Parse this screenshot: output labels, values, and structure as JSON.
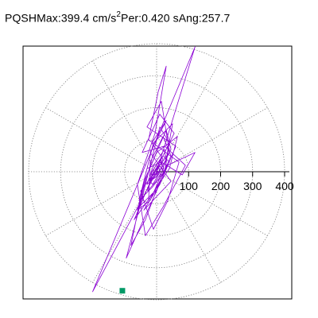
{
  "header": {
    "station": "PQSH",
    "max_label": "Max:",
    "max_value": "399.4",
    "max_unit": "cm/s",
    "max_unit_exp": "2",
    "period_label": "Per:",
    "period_value": "0.420 s",
    "angle_label": "Ang:",
    "angle_value": "257.7"
  },
  "chart_data": {
    "type": "scatter",
    "title": "PQSH  Max: 399.4 cm/s2  Per: 0.420 s  Ang: 257.7",
    "xlabel": "",
    "ylabel": "",
    "radial_ticks": [
      "100",
      "200",
      "300",
      "400"
    ],
    "radial_values": [
      100,
      200,
      300,
      400
    ],
    "rmax": 400,
    "angular_spokes_deg": [
      0,
      30,
      60,
      90,
      120,
      150,
      180,
      210,
      240,
      270,
      300,
      330
    ],
    "grid": true,
    "series": [
      {
        "color": "#8b00d4",
        "points": [
          [
            0,
            0
          ],
          [
            20,
            40
          ],
          [
            -15,
            90
          ],
          [
            30,
            160
          ],
          [
            -20,
            60
          ],
          [
            45,
            -30
          ],
          [
            -40,
            -120
          ],
          [
            10,
            -40
          ],
          [
            60,
            80
          ],
          [
            -30,
            140
          ],
          [
            15,
            220
          ],
          [
            40,
            60
          ],
          [
            -50,
            -60
          ],
          [
            -10,
            -180
          ],
          [
            35,
            -90
          ],
          [
            70,
            30
          ],
          [
            -25,
            100
          ],
          [
            5,
            250
          ],
          [
            30,
            330
          ],
          [
            -5,
            120
          ],
          [
            -60,
            -40
          ],
          [
            -35,
            -200
          ],
          [
            20,
            -110
          ],
          [
            90,
            20
          ],
          [
            25,
            80
          ],
          [
            -45,
            60
          ],
          [
            10,
            180
          ],
          [
            55,
            120
          ],
          [
            -15,
            -20
          ],
          [
            -70,
            -150
          ],
          [
            -20,
            -80
          ],
          [
            40,
            10
          ],
          [
            65,
            110
          ],
          [
            0,
            60
          ],
          [
            -30,
            -10
          ],
          [
            -55,
            -110
          ],
          [
            -5,
            -60
          ],
          [
            30,
            40
          ],
          [
            50,
            150
          ],
          [
            -10,
            90
          ],
          [
            -40,
            -30
          ],
          [
            -80,
            -230
          ],
          [
            -35,
            -150
          ],
          [
            10,
            -30
          ],
          [
            45,
            50
          ],
          [
            20,
            110
          ],
          [
            -20,
            30
          ],
          [
            -25,
            -90
          ],
          [
            5,
            -40
          ],
          [
            35,
            20
          ],
          [
            120,
            60
          ],
          [
            80,
            -10
          ],
          [
            15,
            30
          ],
          [
            -30,
            10
          ],
          [
            -55,
            -90
          ],
          [
            -15,
            -50
          ],
          [
            25,
            0
          ],
          [
            40,
            90
          ],
          [
            10,
            140
          ],
          [
            -15,
            40
          ],
          [
            -40,
            -60
          ],
          [
            -95,
            -270
          ],
          [
            -50,
            -170
          ],
          [
            0,
            -60
          ],
          [
            30,
            20
          ],
          [
            25,
            70
          ],
          [
            -10,
            20
          ],
          [
            -30,
            -40
          ],
          [
            -10,
            -20
          ],
          [
            15,
            10
          ],
          [
            45,
            70
          ],
          [
            30,
            130
          ],
          [
            -5,
            50
          ],
          [
            -35,
            -20
          ],
          [
            -60,
            -120
          ],
          [
            -20,
            -90
          ],
          [
            10,
            -20
          ],
          [
            40,
            30
          ],
          [
            20,
            50
          ],
          [
            -15,
            0
          ],
          [
            -28,
            -60
          ],
          [
            -2,
            -30
          ],
          [
            22,
            10
          ],
          [
            12,
            40
          ],
          [
            -8,
            10
          ],
          [
            -20,
            -30
          ],
          [
            -12,
            -40
          ],
          [
            8,
            -5
          ],
          [
            18,
            25
          ],
          [
            4,
            20
          ],
          [
            -10,
            -5
          ],
          [
            -14,
            -25
          ],
          [
            0,
            -15
          ],
          [
            10,
            5
          ],
          [
            6,
            15
          ],
          [
            -4,
            2
          ],
          [
            -8,
            -10
          ],
          [
            -2,
            -8
          ],
          [
            4,
            2
          ],
          [
            0,
            0
          ],
          [
            -200,
            -375
          ],
          [
            120,
            390
          ],
          [
            0,
            0
          ]
        ],
        "end_marker": {
          "x": -107,
          "y": -372,
          "color": "#009966",
          "shape": "square"
        }
      }
    ]
  }
}
